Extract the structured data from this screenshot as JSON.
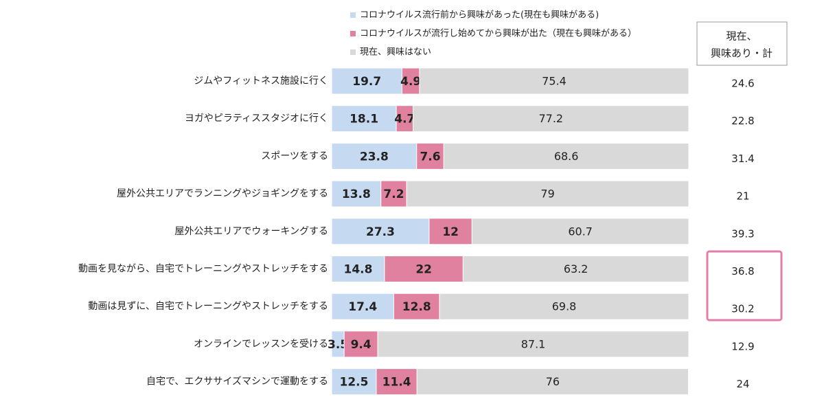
{
  "chart_data": {
    "type": "stacked_bar_horizontal",
    "categories": [
      "ジムやフィットネス施設に行く",
      "ヨガやピラティススタジオに行く",
      "スポーツをする",
      "屋外公共エリアでランニングやジョギングをする",
      "屋外公共エリアでウォーキングする",
      "動画を見ながら、自宅でトレーニングやストレッチをする",
      "動画は見ずに、自宅でトレーニングやストレッチをする",
      "オンラインでレッスンを受ける",
      "自宅で、エクササイズマシンで運動をする"
    ],
    "series": [
      {
        "name": "コロナウイルス流行前から興味があった(現在も興味がある)",
        "color": "#c5d9f1",
        "values": [
          19.7,
          18.1,
          23.8,
          13.8,
          27.3,
          14.8,
          17.4,
          3.5,
          12.5
        ]
      },
      {
        "name": "コロナウイルスが流行し始めてから興味が出た（現在も興味がある）",
        "color": "#e0819f",
        "values": [
          4.9,
          4.7,
          7.6,
          7.2,
          12.0,
          22.0,
          12.8,
          9.4,
          11.4
        ]
      },
      {
        "name": "現在、興味はない",
        "color": "#d9d9d9",
        "values": [
          75.4,
          77.2,
          68.6,
          79.0,
          60.7,
          63.2,
          69.8,
          87.1,
          76.0
        ]
      }
    ],
    "xlim": [
      0,
      100
    ],
    "totals": {
      "header": [
        "現在、",
        "興味あり・計"
      ],
      "values": [
        24.6,
        22.8,
        31.4,
        21.0,
        39.3,
        36.8,
        30.2,
        12.9,
        24.0
      ]
    }
  }
}
